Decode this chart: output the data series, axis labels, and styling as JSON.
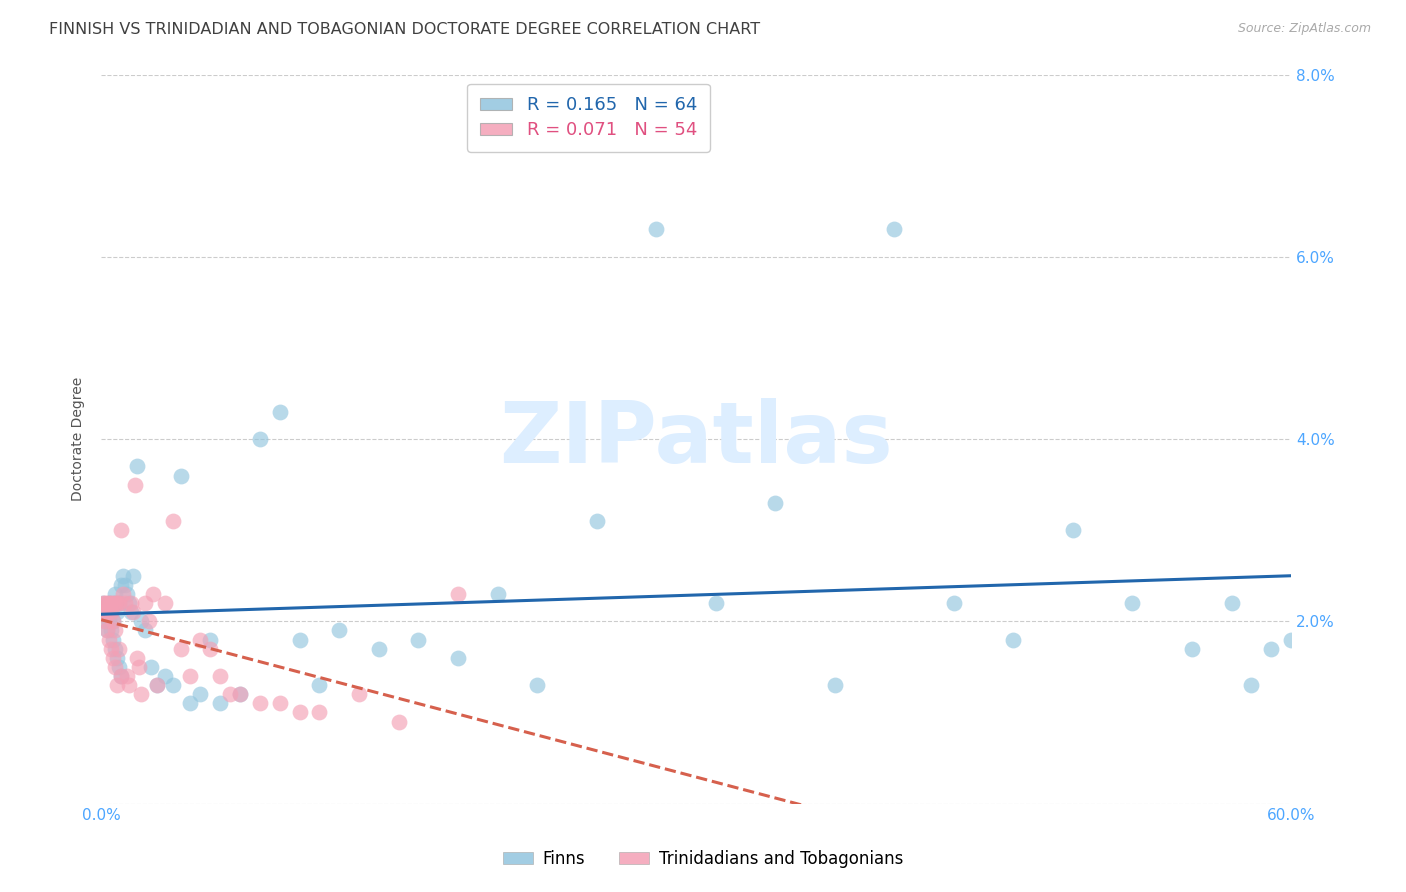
{
  "title": "FINNISH VS TRINIDADIAN AND TOBAGONIAN DOCTORATE DEGREE CORRELATION CHART",
  "source": "Source: ZipAtlas.com",
  "ylabel": "Doctorate Degree",
  "xlim": [
    0.0,
    0.6
  ],
  "ylim": [
    0.0,
    0.08
  ],
  "xticks": [
    0.0,
    0.1,
    0.2,
    0.3,
    0.4,
    0.5,
    0.6
  ],
  "xticklabels": [
    "0.0%",
    "",
    "",
    "",
    "",
    "",
    "60.0%"
  ],
  "yticks": [
    0.0,
    0.02,
    0.04,
    0.06,
    0.08
  ],
  "yticklabels": [
    "",
    "2.0%",
    "4.0%",
    "6.0%",
    "8.0%"
  ],
  "legend_entries": [
    {
      "label": "Finns",
      "R": "0.165",
      "N": "64",
      "color": "#92c5de"
    },
    {
      "label": "Trinidadians and Tobagonians",
      "R": "0.071",
      "N": "54",
      "color": "#f4a0b5"
    }
  ],
  "finns_x": [
    0.001,
    0.002,
    0.002,
    0.003,
    0.003,
    0.004,
    0.004,
    0.005,
    0.005,
    0.006,
    0.006,
    0.007,
    0.007,
    0.007,
    0.008,
    0.008,
    0.009,
    0.009,
    0.01,
    0.01,
    0.011,
    0.012,
    0.013,
    0.014,
    0.015,
    0.016,
    0.018,
    0.02,
    0.022,
    0.025,
    0.028,
    0.032,
    0.036,
    0.04,
    0.045,
    0.05,
    0.055,
    0.06,
    0.07,
    0.08,
    0.09,
    0.1,
    0.11,
    0.12,
    0.14,
    0.16,
    0.18,
    0.2,
    0.22,
    0.25,
    0.28,
    0.31,
    0.34,
    0.37,
    0.4,
    0.43,
    0.46,
    0.49,
    0.52,
    0.55,
    0.57,
    0.58,
    0.59,
    0.6
  ],
  "finns_y": [
    0.022,
    0.021,
    0.02,
    0.021,
    0.019,
    0.02,
    0.022,
    0.019,
    0.021,
    0.02,
    0.018,
    0.022,
    0.017,
    0.023,
    0.021,
    0.016,
    0.022,
    0.015,
    0.024,
    0.014,
    0.025,
    0.024,
    0.023,
    0.022,
    0.021,
    0.025,
    0.037,
    0.02,
    0.019,
    0.015,
    0.013,
    0.014,
    0.013,
    0.036,
    0.011,
    0.012,
    0.018,
    0.011,
    0.012,
    0.04,
    0.043,
    0.018,
    0.013,
    0.019,
    0.017,
    0.018,
    0.016,
    0.023,
    0.013,
    0.031,
    0.063,
    0.022,
    0.033,
    0.013,
    0.063,
    0.022,
    0.018,
    0.03,
    0.022,
    0.017,
    0.022,
    0.013,
    0.017,
    0.018
  ],
  "trini_x": [
    0.001,
    0.001,
    0.002,
    0.002,
    0.003,
    0.003,
    0.003,
    0.004,
    0.004,
    0.005,
    0.005,
    0.005,
    0.006,
    0.006,
    0.006,
    0.007,
    0.007,
    0.007,
    0.008,
    0.008,
    0.009,
    0.009,
    0.01,
    0.01,
    0.011,
    0.012,
    0.013,
    0.014,
    0.015,
    0.016,
    0.017,
    0.018,
    0.019,
    0.02,
    0.022,
    0.024,
    0.026,
    0.028,
    0.032,
    0.036,
    0.04,
    0.045,
    0.05,
    0.055,
    0.06,
    0.065,
    0.07,
    0.08,
    0.09,
    0.1,
    0.11,
    0.13,
    0.15,
    0.18
  ],
  "trini_y": [
    0.022,
    0.021,
    0.022,
    0.02,
    0.022,
    0.021,
    0.019,
    0.022,
    0.018,
    0.022,
    0.021,
    0.017,
    0.022,
    0.02,
    0.016,
    0.022,
    0.019,
    0.015,
    0.022,
    0.013,
    0.022,
    0.017,
    0.03,
    0.014,
    0.023,
    0.022,
    0.014,
    0.013,
    0.022,
    0.021,
    0.035,
    0.016,
    0.015,
    0.012,
    0.022,
    0.02,
    0.023,
    0.013,
    0.022,
    0.031,
    0.017,
    0.014,
    0.018,
    0.017,
    0.014,
    0.012,
    0.012,
    0.011,
    0.011,
    0.01,
    0.01,
    0.012,
    0.009,
    0.023
  ],
  "blue_color": "#92c5de",
  "pink_color": "#f4a0b5",
  "blue_line_color": "#2166ac",
  "pink_line_color": "#d6604d",
  "background_color": "#ffffff",
  "title_color": "#404040",
  "axis_color": "#4da6ff",
  "watermark_color": "#ddeeff",
  "title_fontsize": 11.5,
  "label_fontsize": 10,
  "tick_fontsize": 11
}
